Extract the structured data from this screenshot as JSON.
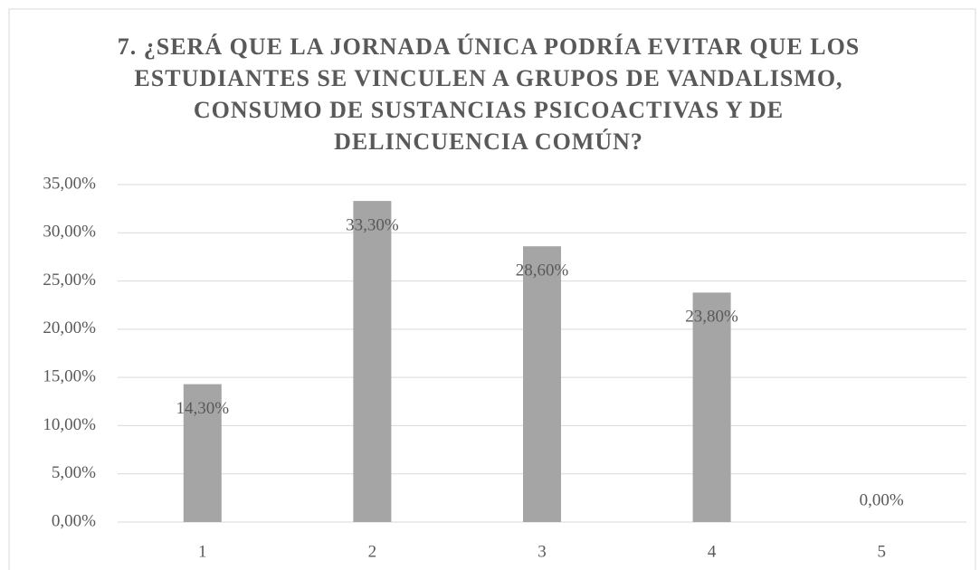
{
  "chart_data": {
    "type": "bar",
    "title": "7. ¿SERÁ QUE LA JORNADA ÚNICA PODRÍA EVITAR QUE LOS ESTUDIANTES SE VINCULEN A GRUPOS DE VANDALISMO, CONSUMO DE SUSTANCIAS PSICOACTIVAS Y DE DELINCUENCIA COMÚN?",
    "categories": [
      "1",
      "2",
      "3",
      "4",
      "5"
    ],
    "values": [
      14.3,
      33.3,
      28.6,
      23.8,
      0
    ],
    "value_labels": [
      "14,30%",
      "33,30%",
      "28,60%",
      "23,80%",
      "0,00%"
    ],
    "color": "#a5a5a5",
    "ylim": [
      0,
      35
    ],
    "yticks": [
      {
        "value": 0,
        "label": "0,00%"
      },
      {
        "value": 5,
        "label": "5,00%"
      },
      {
        "value": 10,
        "label": "10,00%"
      },
      {
        "value": 15,
        "label": "15,00%"
      },
      {
        "value": 20,
        "label": "20,00%"
      },
      {
        "value": 25,
        "label": "25,00%"
      },
      {
        "value": 30,
        "label": "30,00%"
      },
      {
        "value": 35,
        "label": "35,00%"
      }
    ],
    "grid": true
  }
}
